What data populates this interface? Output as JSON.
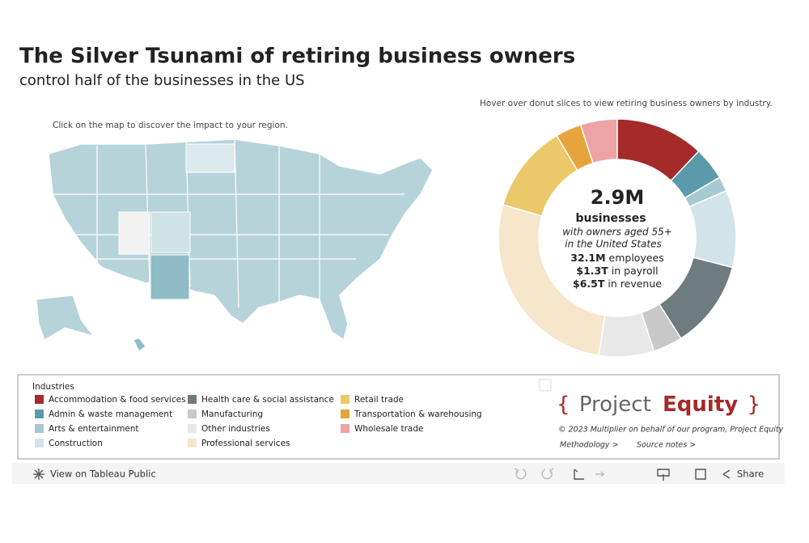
{
  "header": {
    "title": "The Silver Tsunami of retiring business owners",
    "subtitle": "control half of the businesses in the US"
  },
  "map": {
    "instruction": "Click on the map to discover the impact to your region."
  },
  "donut": {
    "instruction": "Hover over donut slices to view retiring business owners by industry.",
    "slices": [
      {
        "name": "Accommodation & food services",
        "color": "#a52a2a",
        "share": 12
      },
      {
        "name": "Admin & waste management",
        "color": "#5b9aab",
        "share": 4.5
      },
      {
        "name": "Arts & entertainment",
        "color": "#a6c8d0",
        "share": 2
      },
      {
        "name": "Construction",
        "color": "#d2e4ea",
        "share": 10.5
      },
      {
        "name": "Health care & social assistance",
        "color": "#6e7b7f",
        "share": 12
      },
      {
        "name": "Manufacturing",
        "color": "#c8c8c8",
        "share": 4
      },
      {
        "name": "Other industries",
        "color": "#e8e8e8",
        "share": 7.5
      },
      {
        "name": "Professional services",
        "color": "#f5e6cc",
        "share": 27
      },
      {
        "name": "Retail trade",
        "color": "#ebc86a",
        "share": 12
      },
      {
        "name": "Transportation & warehousing",
        "color": "#e6a43a",
        "share": 3.5
      },
      {
        "name": "Wholesale trade",
        "color": "#eca4a4",
        "share": 5
      }
    ],
    "center": {
      "value": "2.9M",
      "label": "businesses",
      "lines": [
        "with owners aged 55+",
        "in the United States"
      ],
      "stats": [
        {
          "value": "32.1M",
          "label": "employees"
        },
        {
          "value": "$1.3T",
          "label": "in payroll"
        },
        {
          "value": "$6.5T",
          "label": "in revenue"
        }
      ]
    }
  },
  "legend": {
    "title": "Industries"
  },
  "brand": {
    "open": "{",
    "project": "Project",
    "equity": "Equity",
    "close": "}",
    "credit": "© 2023 Multiplier on behalf of our program, Project Equity",
    "links": [
      "Methodology >",
      "Source notes >"
    ]
  },
  "toolbar": {
    "view": "View on Tableau Public",
    "share": "Share"
  }
}
